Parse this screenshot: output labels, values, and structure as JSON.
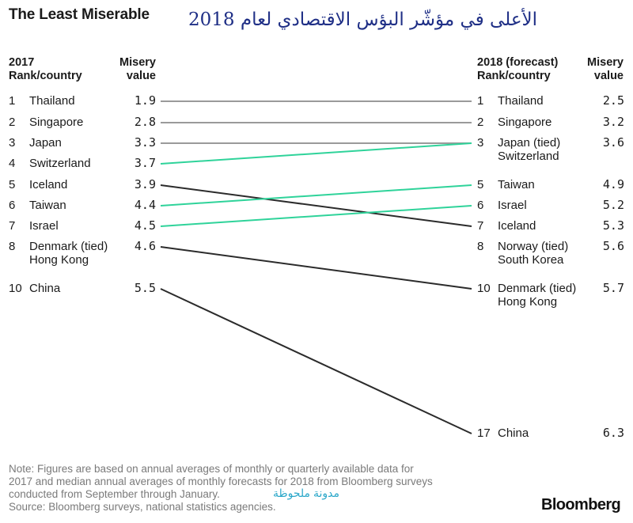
{
  "header": {
    "title": "The Least Miserable",
    "arabic_title": "الأعلى في مؤشّر البؤس الاقتصادي لعام 2018",
    "left_col1": [
      "2017",
      "Rank/country"
    ],
    "left_col2": [
      "Misery",
      "value"
    ],
    "right_col1": [
      "2018 (forecast)",
      "Rank/country"
    ],
    "right_col2": [
      "Misery",
      "value"
    ]
  },
  "colors": {
    "same": "#9a9a9a",
    "improved": "#2fd39a",
    "worsened": "#2b2b2b"
  },
  "chart_data": {
    "type": "slope",
    "title": "The Least Miserable",
    "left_label": "2017 Rank/country",
    "right_label": "2018 (forecast) Rank/country",
    "value_label": "Misery value",
    "left": [
      {
        "rank": "1",
        "country": [
          "Thailand"
        ],
        "value": "1.9"
      },
      {
        "rank": "2",
        "country": [
          "Singapore"
        ],
        "value": "2.8"
      },
      {
        "rank": "3",
        "country": [
          "Japan"
        ],
        "value": "3.3"
      },
      {
        "rank": "4",
        "country": [
          "Switzerland"
        ],
        "value": "3.7"
      },
      {
        "rank": "5",
        "country": [
          "Iceland"
        ],
        "value": "3.9"
      },
      {
        "rank": "6",
        "country": [
          "Taiwan"
        ],
        "value": "4.4"
      },
      {
        "rank": "7",
        "country": [
          "Israel"
        ],
        "value": "4.5"
      },
      {
        "rank": "8",
        "country": [
          "Denmark (tied)",
          "Hong Kong"
        ],
        "value": "4.6"
      },
      {
        "rank": "10",
        "country": [
          "China"
        ],
        "value": "5.5"
      }
    ],
    "right": [
      {
        "rank": "1",
        "country": [
          "Thailand"
        ],
        "value": "2.5"
      },
      {
        "rank": "2",
        "country": [
          "Singapore"
        ],
        "value": "3.2"
      },
      {
        "rank": "3",
        "country": [
          "Japan (tied)",
          "Switzerland"
        ],
        "value": "3.6"
      },
      {
        "rank": "5",
        "country": [
          "Taiwan"
        ],
        "value": "4.9"
      },
      {
        "rank": "6",
        "country": [
          "Israel"
        ],
        "value": "5.2"
      },
      {
        "rank": "7",
        "country": [
          "Iceland"
        ],
        "value": "5.3"
      },
      {
        "rank": "8",
        "country": [
          "Norway (tied)",
          "South Korea"
        ],
        "value": "5.6"
      },
      {
        "rank": "10",
        "country": [
          "Denmark (tied)",
          "Hong Kong"
        ],
        "value": "5.7"
      },
      {
        "rank": "17",
        "country": [
          "China"
        ],
        "value": "6.3"
      }
    ],
    "links": [
      {
        "from": 0,
        "to": 0,
        "change": "same"
      },
      {
        "from": 1,
        "to": 1,
        "change": "same"
      },
      {
        "from": 2,
        "to": 2,
        "change": "same"
      },
      {
        "from": 3,
        "to": 2,
        "change": "improved"
      },
      {
        "from": 4,
        "to": 5,
        "change": "worsened"
      },
      {
        "from": 5,
        "to": 3,
        "change": "improved"
      },
      {
        "from": 6,
        "to": 4,
        "change": "improved"
      },
      {
        "from": 7,
        "to": 7,
        "change": "worsened"
      },
      {
        "from": 8,
        "to": 8,
        "change": "worsened"
      }
    ]
  },
  "footer": {
    "note": [
      "Note: Figures are based on annual averages of monthly or quarterly available data for",
      "2017 and median annual averages of monthly forecasts for 2018 from Bloomberg surveys",
      "conducted from September through January.",
      "Source: Bloomberg surveys, national statistics agencies."
    ],
    "watermark": "مدونة ملحوظة",
    "brand": "Bloomberg"
  }
}
